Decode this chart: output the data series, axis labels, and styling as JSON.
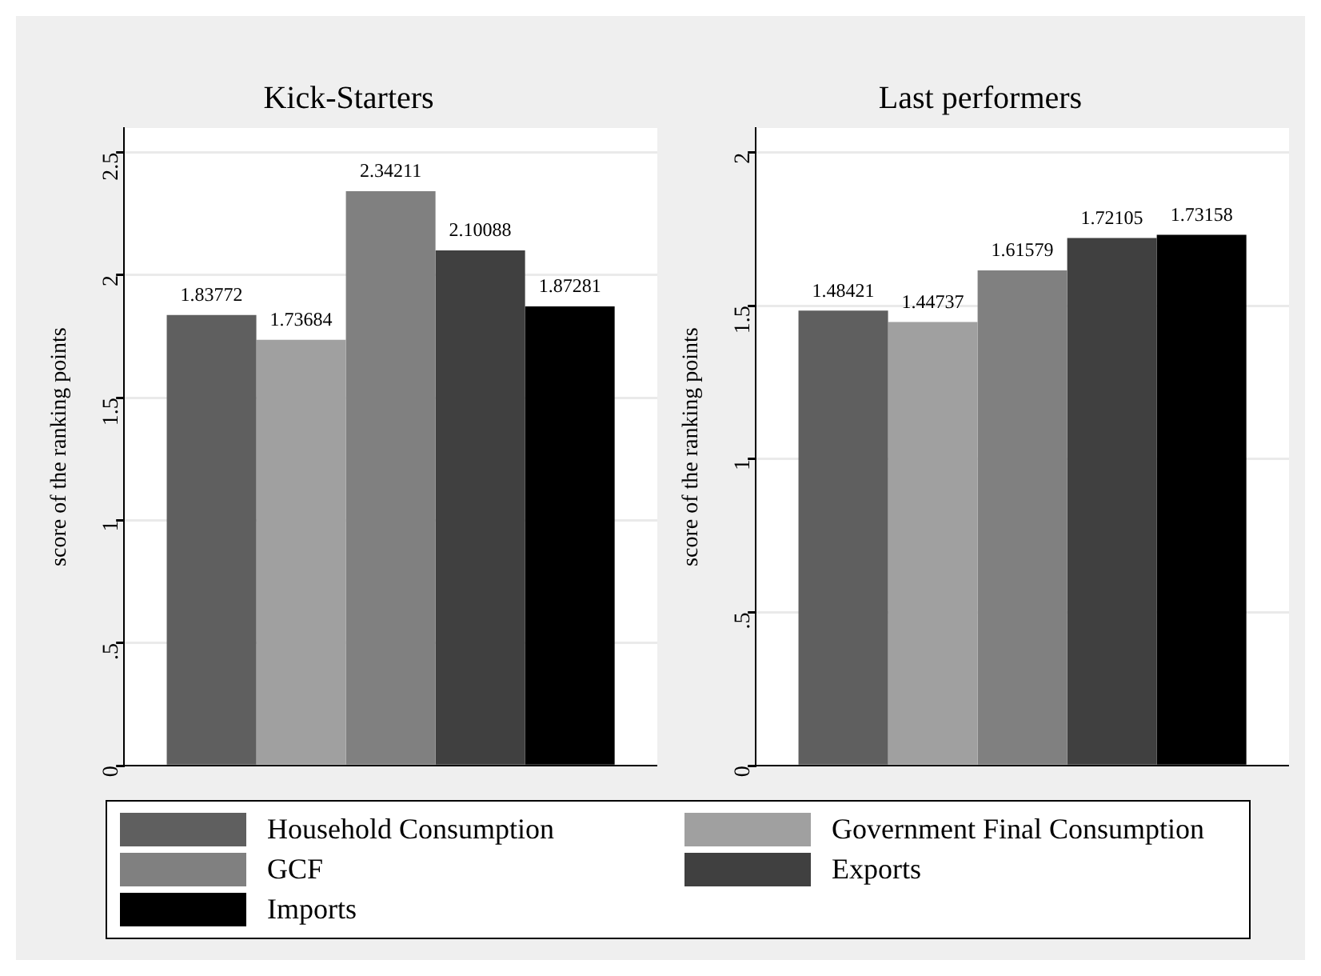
{
  "chart_data": [
    {
      "type": "bar",
      "title": "Kick-Starters",
      "ylabel": "score of the ranking points",
      "categories": [
        null
      ],
      "series": [
        {
          "name": "Household Consumption",
          "color": "#5f5f5f",
          "values": [
            1.83772
          ]
        },
        {
          "name": "Government Final Consumption",
          "color": "#a0a0a0",
          "values": [
            1.73684
          ]
        },
        {
          "name": "GCF",
          "color": "#808080",
          "values": [
            2.34211
          ]
        },
        {
          "name": "Exports",
          "color": "#404040",
          "values": [
            2.10088
          ]
        },
        {
          "name": "Imports",
          "color": "#000000",
          "values": [
            1.87281
          ]
        }
      ],
      "ylim": [
        0,
        2.6
      ],
      "yticks": [
        0,
        {
          "value": 0.5,
          "label": ".5"
        },
        1,
        1.5,
        2,
        2.5
      ],
      "grid": "y",
      "legend": "bottom",
      "data_labels": true,
      "tick_labels": "y"
    },
    {
      "type": "bar",
      "title": "Last performers",
      "ylabel": "score of the ranking points",
      "categories": [
        null
      ],
      "series": [
        {
          "name": "Household Consumption",
          "color": "#5f5f5f",
          "values": [
            1.48421
          ]
        },
        {
          "name": "Government Final Consumption",
          "color": "#a0a0a0",
          "values": [
            1.44737
          ]
        },
        {
          "name": "GCF",
          "color": "#808080",
          "values": [
            1.61579
          ]
        },
        {
          "name": "Exports",
          "color": "#404040",
          "values": [
            1.72105
          ]
        },
        {
          "name": "Imports",
          "color": "#000000",
          "values": [
            1.73158
          ]
        }
      ],
      "ylim": [
        0,
        2.08
      ],
      "yticks": [
        0,
        {
          "value": 0.5,
          "label": ".5"
        },
        1,
        1.5,
        2
      ],
      "grid": "y",
      "legend": "bottom",
      "data_labels": true,
      "tick_labels": "y"
    }
  ]
}
